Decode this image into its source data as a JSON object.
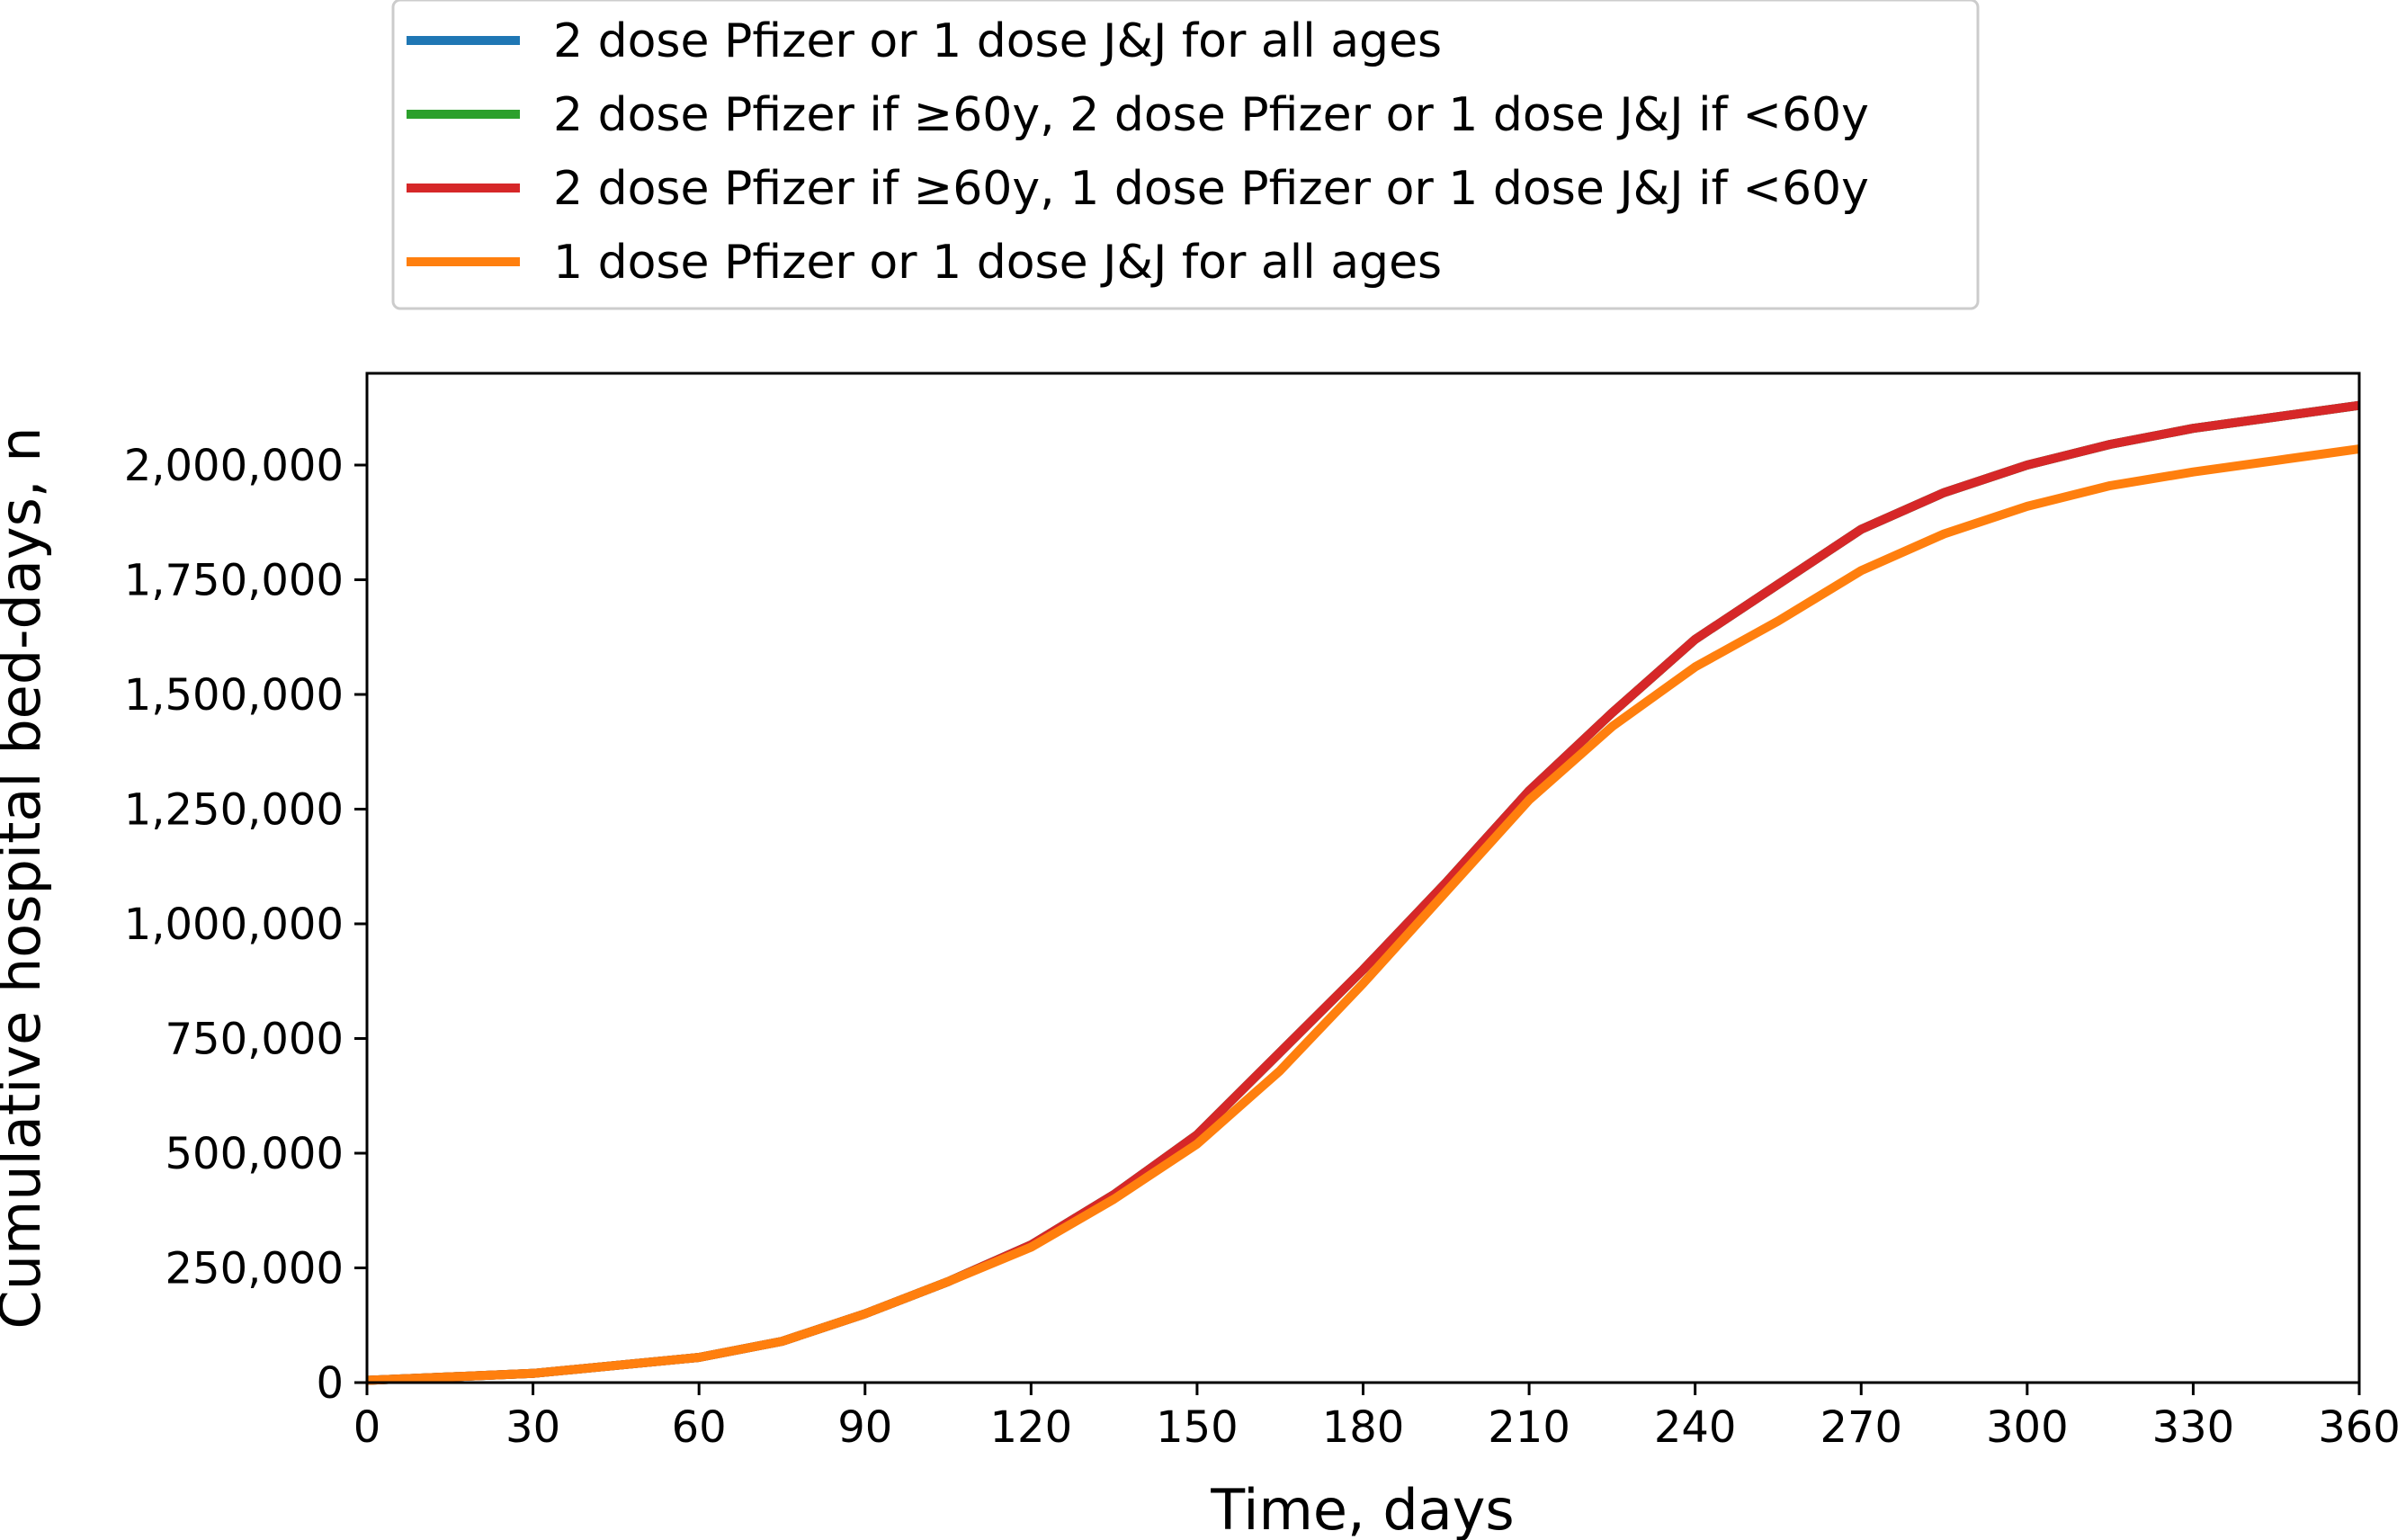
{
  "chart_data": {
    "type": "line",
    "title": "",
    "xlabel": "Time, days",
    "ylabel": "Cumulative hospital bed-days, n",
    "xlim": [
      0,
      360
    ],
    "ylim": [
      0,
      2200000
    ],
    "xticks": [
      0,
      30,
      60,
      90,
      120,
      150,
      180,
      210,
      240,
      270,
      300,
      330,
      360
    ],
    "xtick_labels": [
      "0",
      "30",
      "60",
      "90",
      "120",
      "150",
      "180",
      "210",
      "240",
      "270",
      "300",
      "330",
      "360"
    ],
    "yticks": [
      0,
      250000,
      500000,
      750000,
      1000000,
      1250000,
      1500000,
      1750000,
      2000000
    ],
    "ytick_labels": [
      "0",
      "250,000",
      "500,000",
      "750,000",
      "1,000,000",
      "1,250,000",
      "1,500,000",
      "1,750,000",
      "2,000,000"
    ],
    "grid": false,
    "legend_position": "top",
    "x": [
      0,
      30,
      60,
      75,
      90,
      105,
      120,
      135,
      150,
      165,
      180,
      195,
      210,
      225,
      240,
      255,
      270,
      285,
      300,
      315,
      330,
      345,
      360
    ],
    "series": [
      {
        "name": "2 dose Pfizer or 1 dose J&J for all ages",
        "color": "#1f77b4",
        "values": [
          5000,
          20000,
          55000,
          90000,
          150000,
          220000,
          300000,
          410000,
          540000,
          720000,
          900000,
          1090000,
          1290000,
          1460000,
          1620000,
          1740000,
          1860000,
          1940000,
          2000000,
          2045000,
          2080000,
          2105000,
          2130000
        ]
      },
      {
        "name": "2 dose Pfizer if ≥60y, 2 dose Pfizer or 1 dose J&J if <60y",
        "color": "#2ca02c",
        "values": [
          5000,
          20000,
          55000,
          90000,
          150000,
          220000,
          300000,
          410000,
          540000,
          720000,
          900000,
          1090000,
          1290000,
          1460000,
          1620000,
          1740000,
          1860000,
          1940000,
          2000000,
          2045000,
          2080000,
          2105000,
          2130000
        ]
      },
      {
        "name": "2 dose Pfizer if ≥60y, 1 dose Pfizer or 1 dose J&J if <60y",
        "color": "#d62728",
        "values": [
          5000,
          20000,
          55000,
          90000,
          150000,
          220000,
          300000,
          410000,
          540000,
          720000,
          900000,
          1090000,
          1290000,
          1460000,
          1620000,
          1740000,
          1860000,
          1940000,
          2000000,
          2045000,
          2080000,
          2105000,
          2130000
        ]
      },
      {
        "name": "1 dose Pfizer or 1 dose J&J for all ages",
        "color": "#ff7f0e",
        "values": [
          5000,
          20000,
          55000,
          90000,
          150000,
          220000,
          295000,
          400000,
          520000,
          680000,
          870000,
          1070000,
          1270000,
          1430000,
          1560000,
          1660000,
          1770000,
          1850000,
          1910000,
          1955000,
          1985000,
          2010000,
          2035000
        ]
      }
    ]
  }
}
